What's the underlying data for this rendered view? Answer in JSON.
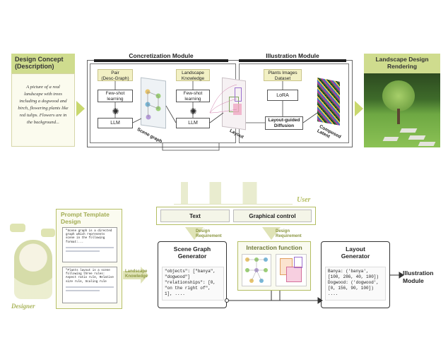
{
  "top": {
    "concept_title": "Design Concept",
    "concept_subtitle": "(Description)",
    "concept_text": "A picture of a real landscape with trees including a dogwood and birch, flowering plants like red tulips. Flowers are in the background...",
    "concretization_label": "Concretization Module",
    "illustration_label": "Illustration Module",
    "pair_label": "Pair",
    "pair_sub": "(Desc-Graph)",
    "fewshot1": "Few-shot learning",
    "llm1": "LLM",
    "scene_graph_label": "Scene graph",
    "landscape_knowledge": "Landscape Knowledge",
    "fewshot2": "Few-shot learning",
    "llm2": "LLM",
    "layout_label": "Layout",
    "plants_dataset": "Plants Images Dataset",
    "lora": "LoRA",
    "diffusion": "Layout-guided Diffusion",
    "latent_label": "Composed Latent",
    "rendering_title": "Landscape Design Rendering"
  },
  "bottom": {
    "user_label": "User",
    "text_control": "Text",
    "graphical_control": "Graphical control",
    "design_req1": "Design Requirement",
    "design_req2": "Design Requirement",
    "prompt_title": "Prompt Template Design",
    "prompt1": "\"Scene graph is a directed graph which represents scene in the following format:...",
    "prompt2": "\"Plants layout is a scene following three rules: Aspect ratio rule, Relative size rule, Scaling rule",
    "designer_label": "Designer",
    "landscape_knowledge": "Landscape Knowledge",
    "sg_title": "Scene Graph Generator",
    "sg_code1": "\"objects\": [\"banya\",",
    "sg_code2": "\"dogwood\"]",
    "sg_code3": "\"relationships\": [0,",
    "sg_code4": "\"on the right of\",",
    "sg_code5": "1], ....",
    "interaction_title": "Interaction function",
    "layout_title": "Layout Generator",
    "lg_code1": "Banya: ('banya',",
    "lg_code2": "[100, 286, 40, 100])",
    "lg_code3": "Dogwood: ('dogwood',",
    "lg_code4": "[0, 156, 90, 100])",
    "lg_code5": "....",
    "illustration_module": "Illustration Module"
  }
}
